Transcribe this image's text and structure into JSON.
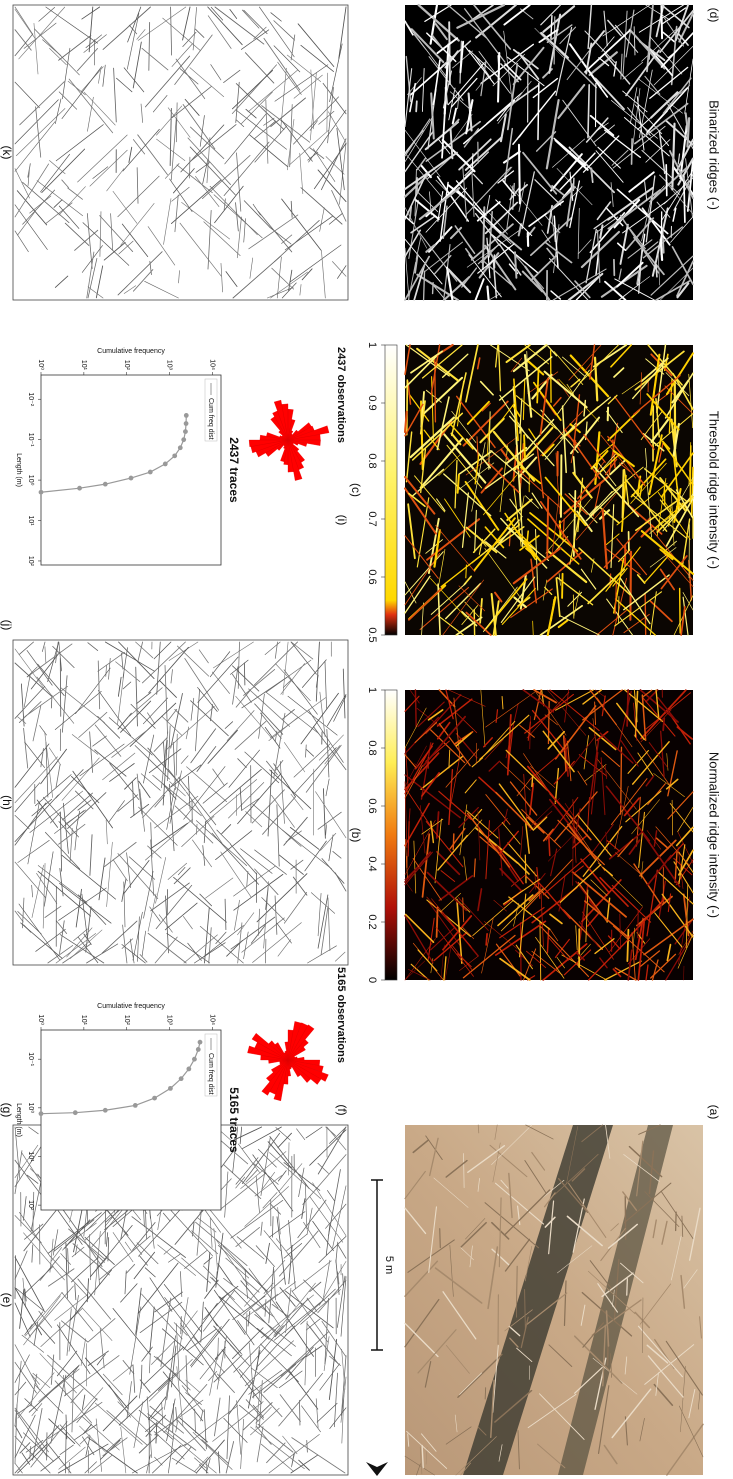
{
  "panels": {
    "a": {
      "label": "(a)",
      "scale_bar": "5 m"
    },
    "b": {
      "label": "(b)",
      "title": "Normalized ridge intensity (-)",
      "colorbar_ticks": [
        "1",
        "0.8",
        "0.6",
        "0.4",
        "0.2",
        "0"
      ]
    },
    "c": {
      "label": "(c)",
      "title": "Threshold ridge intensity (-)",
      "colorbar_ticks": [
        "1",
        "0.9",
        "0.8",
        "0.7",
        "0.6",
        "0.5"
      ]
    },
    "d": {
      "label": "(d)",
      "title": "Binarized ridges (-)"
    },
    "e": {
      "label": "(e)"
    },
    "f": {
      "label": "(f)",
      "caption": "5165 observations"
    },
    "g": {
      "label": "(g)",
      "caption": "5165 traces",
      "legend": "Cum freq dist",
      "y_label": "Cumulative frequency",
      "x_label": "Length (m)",
      "y_ticks": [
        "10⁴",
        "10³",
        "10²",
        "10¹",
        "10⁰"
      ],
      "x_ticks": [
        "10⁻¹",
        "10⁰",
        "10¹",
        "10²"
      ]
    },
    "h": {
      "label": "(h)"
    },
    "i": {
      "label": "(i)",
      "caption": "2437 observations"
    },
    "j": {
      "label": "(j)",
      "caption": "2437 traces",
      "legend": "Cum freq dist",
      "y_label": "Cumulative frequency",
      "x_label": "Length (m)",
      "y_ticks": [
        "10⁴",
        "10³",
        "10²",
        "10¹",
        "10⁰"
      ],
      "x_ticks": [
        "10⁻²",
        "10⁻¹",
        "10⁰",
        "10¹",
        "10²"
      ]
    },
    "k": {
      "label": "(k)"
    }
  }
}
